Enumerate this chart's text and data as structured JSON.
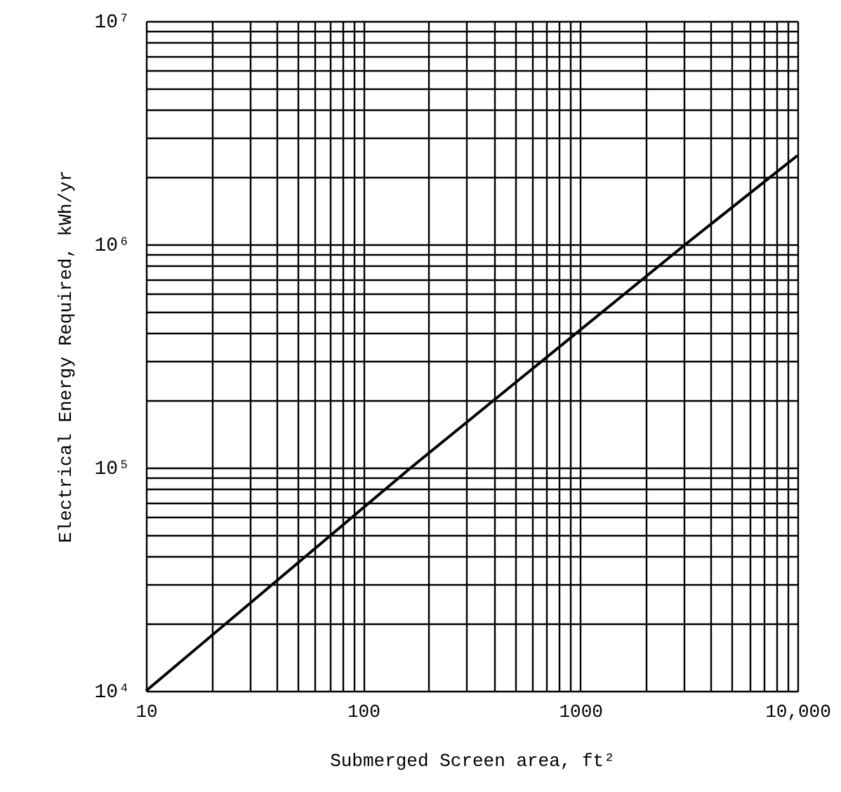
{
  "chart_data": {
    "type": "line",
    "xlabel": "Submerged Screen area, ft²",
    "ylabel": "Electrical Energy Required, kWh/yr",
    "x": [
      10,
      166,
      3050,
      10000
    ],
    "series": [
      {
        "color": "#000000",
        "values": [
          10000,
          100000,
          1000000,
          2500000
        ]
      }
    ],
    "log": "xy",
    "xlim": [
      10,
      10000
    ],
    "ylim": [
      10000,
      10000000
    ],
    "xticks": [
      10,
      {
        "value": 20,
        "label": null
      },
      {
        "value": 30,
        "label": null
      },
      {
        "value": 40,
        "label": null
      },
      {
        "value": 50,
        "label": null
      },
      {
        "value": 60,
        "label": null
      },
      {
        "value": 70,
        "label": null
      },
      {
        "value": 80,
        "label": null
      },
      {
        "value": 90,
        "label": null
      },
      100,
      {
        "value": 200,
        "label": null
      },
      {
        "value": 300,
        "label": null
      },
      {
        "value": 400,
        "label": null
      },
      {
        "value": 500,
        "label": null
      },
      {
        "value": 600,
        "label": null
      },
      {
        "value": 700,
        "label": null
      },
      {
        "value": 800,
        "label": null
      },
      {
        "value": 900,
        "label": null
      },
      1000,
      {
        "value": 2000,
        "label": null
      },
      {
        "value": 3000,
        "label": null
      },
      {
        "value": 4000,
        "label": null
      },
      {
        "value": 5000,
        "label": null
      },
      {
        "value": 6000,
        "label": null
      },
      {
        "value": 7000,
        "label": null
      },
      {
        "value": 8000,
        "label": null
      },
      {
        "value": 9000,
        "label": null
      },
      {
        "value": 10000,
        "label": "10,000"
      }
    ],
    "yticks": [
      {
        "value": 10000,
        "label": "10⁴"
      },
      {
        "value": 20000,
        "label": null
      },
      {
        "value": 30000,
        "label": null
      },
      {
        "value": 40000,
        "label": null
      },
      {
        "value": 50000,
        "label": null
      },
      {
        "value": 60000,
        "label": null
      },
      {
        "value": 70000,
        "label": null
      },
      {
        "value": 80000,
        "label": null
      },
      {
        "value": 90000,
        "label": null
      },
      {
        "value": 100000,
        "label": "10⁵"
      },
      {
        "value": 200000,
        "label": null
      },
      {
        "value": 300000,
        "label": null
      },
      {
        "value": 400000,
        "label": null
      },
      {
        "value": 500000,
        "label": null
      },
      {
        "value": 600000,
        "label": null
      },
      {
        "value": 700000,
        "label": null
      },
      {
        "value": 800000,
        "label": null
      },
      {
        "value": 900000,
        "label": null
      },
      {
        "value": 1000000,
        "label": "10⁶"
      },
      {
        "value": 2000000,
        "label": null
      },
      {
        "value": 3000000,
        "label": null
      },
      {
        "value": 4000000,
        "label": null
      },
      {
        "value": 5000000,
        "label": null
      },
      {
        "value": 6000000,
        "label": null
      },
      {
        "value": 7000000,
        "label": null
      },
      {
        "value": 8000000,
        "label": null
      },
      {
        "value": 9000000,
        "label": null
      },
      {
        "value": 10000000,
        "label": "10⁷"
      }
    ],
    "grid": true,
    "line_style": "solid",
    "marker": "none"
  }
}
